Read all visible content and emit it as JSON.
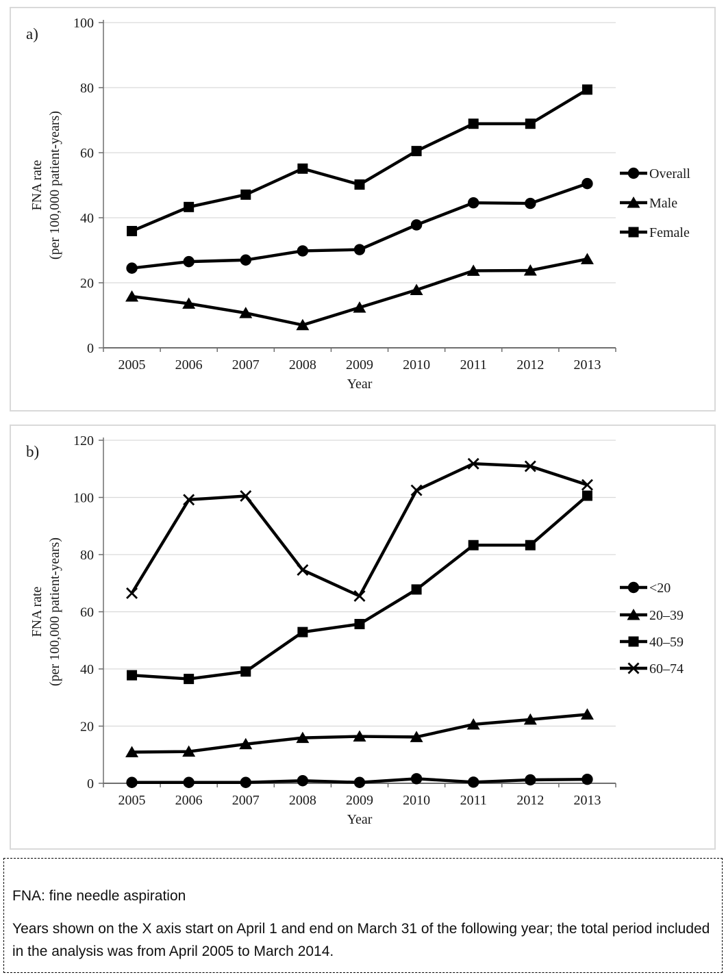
{
  "footnote": {
    "abbreviation": "FNA: fine needle aspiration",
    "period_note": "Years shown on the X axis start on April 1 and end on March 31 of the following year; the total period included in the analysis was from April 2005 to March 2014."
  },
  "colors": {
    "series_line": "#000000",
    "grid": "#d9d9d9",
    "axis": "#6e6e6e",
    "text": "#1a1a1a",
    "panel_border": "#d9d9d9"
  },
  "chart_data": [
    {
      "id": "a",
      "type": "line",
      "panel_label": "a)",
      "xlabel": "Year",
      "ylabel_line1": "FNA rate",
      "ylabel_line2": "(per 100,000 patient-years)",
      "categories": [
        "2005",
        "2006",
        "2007",
        "2008",
        "2009",
        "2010",
        "2011",
        "2012",
        "2013"
      ],
      "ylim": [
        0,
        100
      ],
      "yticks": [
        0,
        20,
        40,
        60,
        80,
        100
      ],
      "grid": true,
      "legend_position": "right",
      "series": [
        {
          "name": "Overall",
          "marker": "circle",
          "values": [
            24.5,
            26.5,
            27.0,
            29.8,
            30.2,
            37.8,
            44.6,
            44.4,
            50.5
          ]
        },
        {
          "name": "Male",
          "marker": "triangle",
          "values": [
            15.8,
            13.6,
            10.7,
            7.0,
            12.4,
            17.8,
            23.7,
            23.8,
            27.3
          ]
        },
        {
          "name": "Female",
          "marker": "square",
          "values": [
            35.9,
            43.3,
            47.1,
            55.1,
            50.2,
            60.5,
            68.9,
            68.9,
            79.4
          ]
        }
      ]
    },
    {
      "id": "b",
      "type": "line",
      "panel_label": "b)",
      "xlabel": "Year",
      "ylabel_line1": "FNA rate",
      "ylabel_line2": "(per 100,000 patient-years)",
      "categories": [
        "2005",
        "2006",
        "2007",
        "2008",
        "2009",
        "2010",
        "2011",
        "2012",
        "2013"
      ],
      "ylim": [
        0,
        120
      ],
      "yticks": [
        0,
        20,
        40,
        60,
        80,
        100,
        120
      ],
      "grid": true,
      "legend_position": "right",
      "series": [
        {
          "name": "<20",
          "marker": "circle",
          "values": [
            0.3,
            0.3,
            0.3,
            0.9,
            0.3,
            1.6,
            0.4,
            1.2,
            1.4
          ]
        },
        {
          "name": "20–39",
          "marker": "triangle",
          "values": [
            10.9,
            11.1,
            13.7,
            15.9,
            16.4,
            16.2,
            20.6,
            22.3,
            24.1
          ]
        },
        {
          "name": "40–59",
          "marker": "square",
          "values": [
            37.8,
            36.5,
            39.1,
            52.9,
            55.7,
            67.8,
            83.3,
            83.3,
            100.6
          ]
        },
        {
          "name": "60–74",
          "marker": "x",
          "values": [
            66.5,
            99.2,
            100.5,
            74.6,
            65.5,
            102.5,
            111.8,
            110.9,
            104.4
          ]
        }
      ]
    }
  ]
}
